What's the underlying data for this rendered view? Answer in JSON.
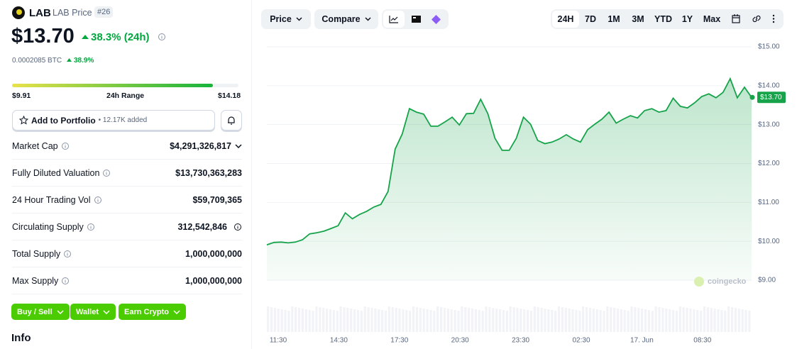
{
  "coin": {
    "symbol": "LAB",
    "name": "LAB Price",
    "rank": "#26",
    "price": "$13.70",
    "change": "38.3% (24h)",
    "btc_price": "0.0002085 BTC",
    "btc_change": "38.9%"
  },
  "range": {
    "low": "$9.91",
    "label": "24h Range",
    "high": "$14.18"
  },
  "portfolio": {
    "button": "Add to Portfolio",
    "added": "• 12.17K added"
  },
  "stats": [
    {
      "label": "Market Cap",
      "value": "$4,291,326,817"
    },
    {
      "label": "Fully Diluted Valuation",
      "value": "$13,730,363,283"
    },
    {
      "label": "24 Hour Trading Vol",
      "value": "$59,709,365"
    },
    {
      "label": "Circulating Supply",
      "value": "312,542,846"
    },
    {
      "label": "Total Supply",
      "value": "1,000,000,000"
    },
    {
      "label": "Max Supply",
      "value": "1,000,000,000"
    }
  ],
  "actions": [
    "Buy / Sell",
    "Wallet",
    "Earn Crypto"
  ],
  "info_heading": "Info",
  "chart_controls": {
    "menus": [
      "Price",
      "Compare"
    ],
    "ranges": [
      "24H",
      "7D",
      "1M",
      "3M",
      "YTD",
      "1Y",
      "Max"
    ]
  },
  "chart_data": {
    "type": "line",
    "color": "#16a34a",
    "current_label": "$13.70",
    "watermark": "coingecko",
    "ylim": [
      9,
      15
    ],
    "yticks": [
      {
        "value": 9,
        "label": "$9.00"
      },
      {
        "value": 10,
        "label": "$10.00"
      },
      {
        "value": 11,
        "label": "$11.00"
      },
      {
        "value": 12,
        "label": "$12.00"
      },
      {
        "value": 13,
        "label": "$13.00"
      },
      {
        "value": 14,
        "label": "$14.00"
      },
      {
        "value": 15,
        "label": "$15.00"
      }
    ],
    "xtick_labels": [
      "11:30",
      "14:30",
      "17:30",
      "20:30",
      "23:30",
      "02:30",
      "17. Jun",
      "08:30"
    ],
    "values": [
      9.91,
      9.97,
      9.98,
      9.96,
      9.98,
      10.04,
      10.19,
      10.22,
      10.26,
      10.33,
      10.4,
      10.73,
      10.58,
      10.69,
      10.77,
      10.88,
      10.95,
      11.28,
      12.37,
      12.76,
      13.41,
      13.32,
      13.27,
      12.96,
      12.96,
      13.07,
      13.19,
      12.99,
      13.28,
      13.29,
      13.65,
      13.28,
      12.65,
      12.34,
      12.34,
      12.65,
      13.19,
      13.01,
      12.59,
      12.51,
      12.55,
      12.63,
      12.74,
      12.63,
      12.55,
      12.87,
      13.01,
      13.14,
      13.32,
      13.04,
      13.14,
      13.23,
      13.17,
      13.36,
      13.41,
      13.32,
      13.36,
      13.68,
      13.47,
      13.43,
      13.56,
      13.72,
      13.79,
      13.69,
      13.83,
      14.18,
      13.69,
      13.96,
      13.7
    ]
  }
}
